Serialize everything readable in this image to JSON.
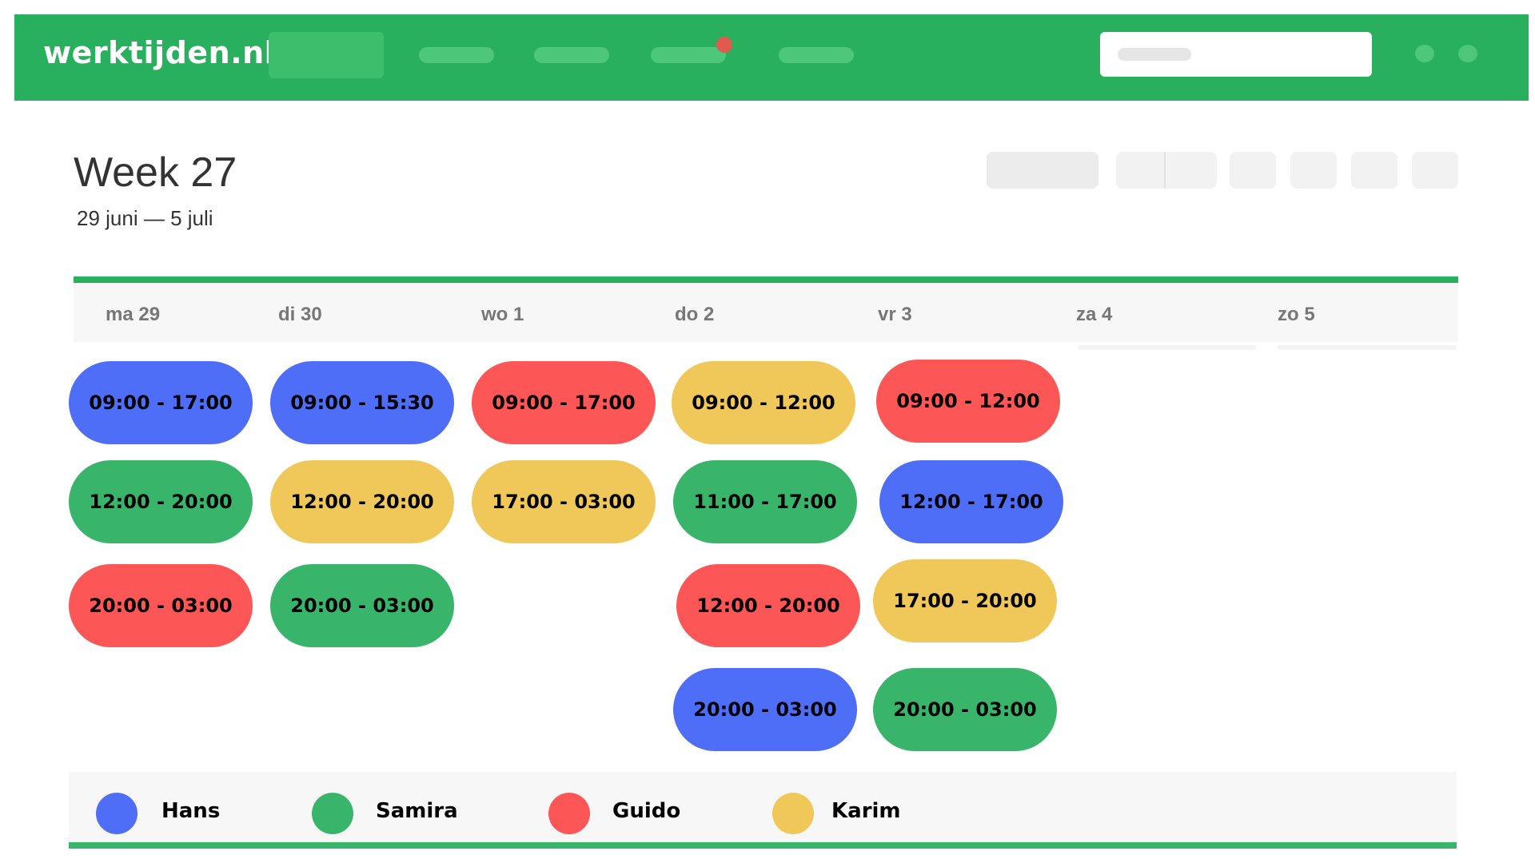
{
  "brand": {
    "logo": "werktijden.nl",
    "accent": "#29b05e"
  },
  "header": {
    "title": "Week 27",
    "date_range": "29 juni — 5 juli"
  },
  "days": [
    {
      "label": "ma 29"
    },
    {
      "label": "di 30"
    },
    {
      "label": "wo 1"
    },
    {
      "label": "do 2"
    },
    {
      "label": "vr 3"
    },
    {
      "label": "za 4"
    },
    {
      "label": "zo 5"
    }
  ],
  "shifts": {
    "mon": [
      "09:00 - 17:00",
      "12:00 - 20:00",
      "20:00 - 03:00"
    ],
    "tue": [
      "09:00 - 15:30",
      "12:00 - 20:00",
      "20:00 - 03:00"
    ],
    "wed": [
      "09:00 - 17:00",
      "17:00 - 03:00"
    ],
    "thu": [
      "09:00 - 12:00",
      "11:00 - 17:00",
      "12:00 - 20:00",
      "20:00 - 03:00"
    ],
    "fri": [
      "09:00 - 12:00",
      "12:00 - 17:00",
      "17:00 - 20:00",
      "20:00 - 03:00"
    ]
  },
  "legend": [
    {
      "name": "Hans",
      "color": "#4f6ef7"
    },
    {
      "name": "Samira",
      "color": "#38b56a"
    },
    {
      "name": "Guido",
      "color": "#fc5656"
    },
    {
      "name": "Karim",
      "color": "#f0c85a"
    }
  ]
}
